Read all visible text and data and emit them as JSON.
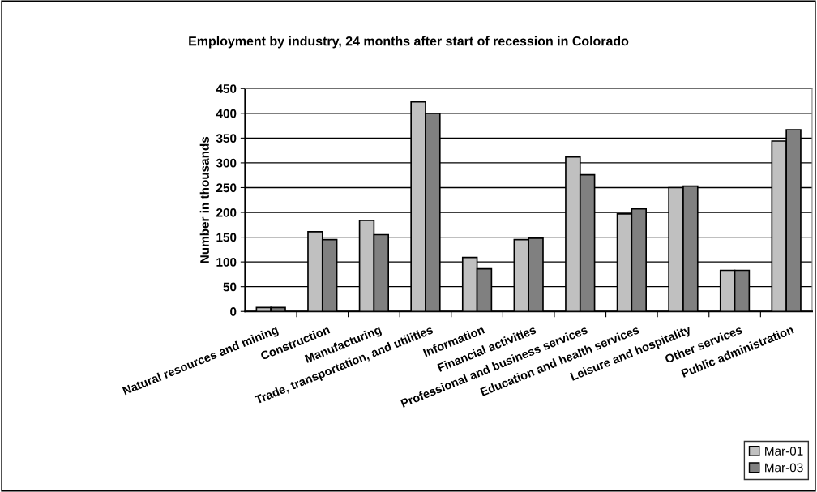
{
  "chart_data": {
    "type": "bar",
    "title": "Employment by industry, 24 months after start of recession in Colorado",
    "ylabel": "Number in thousands",
    "categories": [
      "Natural resources and mining",
      "Construction",
      "Manufacturing",
      "Trade, transportation, and utilities",
      "Information",
      "Financial activities",
      "Professional and business services",
      "Education and health services",
      "Leisure and hospitality",
      "Other services",
      "Public administration"
    ],
    "series": [
      {
        "name": "Mar-01",
        "color": "#c0c0c0",
        "values": [
          8,
          161,
          184,
          423,
          109,
          145,
          312,
          197,
          250,
          83,
          344
        ]
      },
      {
        "name": "Mar-03",
        "color": "#808080",
        "values": [
          8,
          145,
          155,
          400,
          86,
          148,
          276,
          207,
          253,
          83,
          367
        ]
      }
    ],
    "ylim": [
      0,
      450
    ],
    "yticks": [
      0,
      50,
      100,
      150,
      200,
      250,
      300,
      350,
      400,
      450
    ],
    "grid": "y",
    "legend": "bottom right"
  }
}
